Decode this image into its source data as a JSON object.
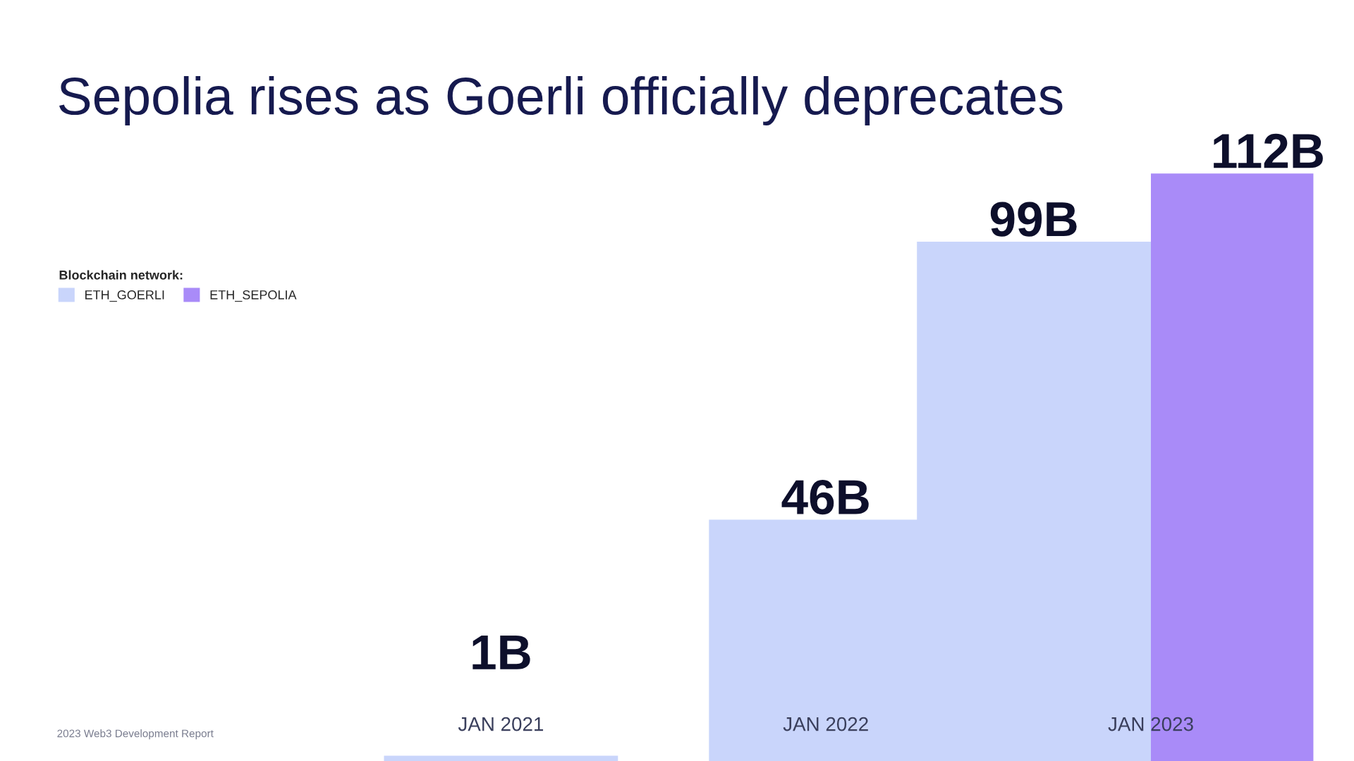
{
  "chart_data": {
    "type": "bar",
    "title": "Sepolia rises as Goerli officially deprecates",
    "categories": [
      "JAN 2021",
      "JAN 2022",
      "JAN 2023"
    ],
    "series": [
      {
        "name": "ETH_GOERLI",
        "color": "#c9d5fb",
        "values": [
          1,
          46,
          99
        ],
        "value_labels": [
          "1B",
          "46B",
          "99B"
        ]
      },
      {
        "name": "ETH_SEPOLIA",
        "color": "#a98bf8",
        "values": [
          null,
          null,
          112
        ],
        "value_labels": [
          null,
          null,
          "112B"
        ]
      }
    ],
    "legend_title": "Blockchain network:",
    "legend": "left",
    "annotations": [
      "2023 Web3 Development Report"
    ]
  }
}
